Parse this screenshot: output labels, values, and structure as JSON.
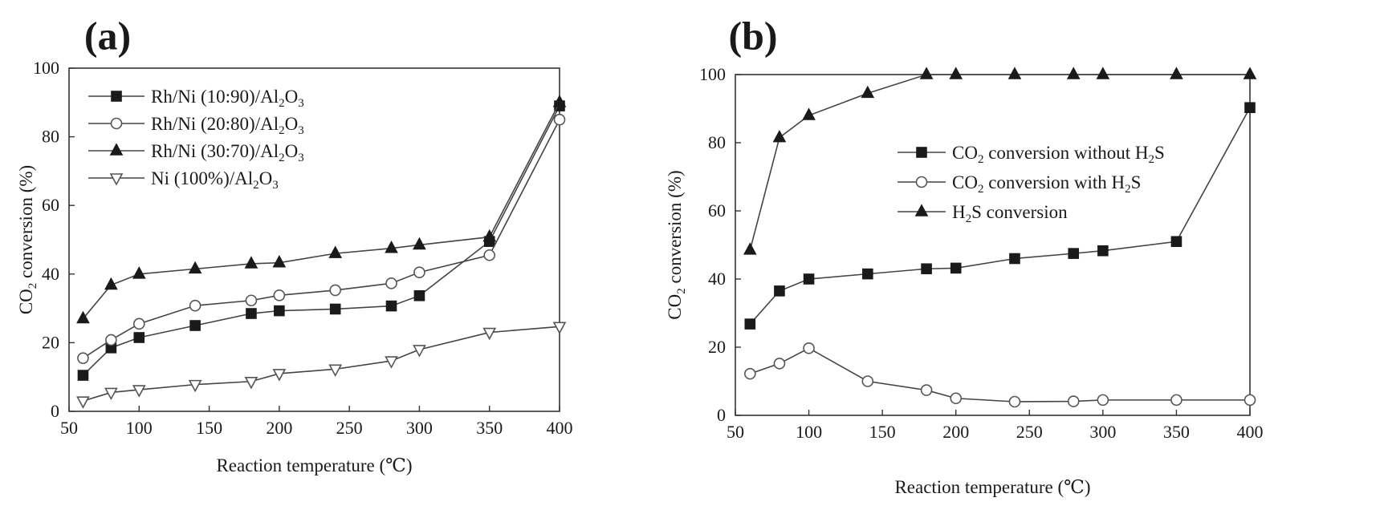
{
  "chart_data": [
    {
      "type": "line",
      "panel_label": "(a)",
      "xlabel": "Reaction temperature (℃)",
      "ylabel": "CO2 conversion (%)",
      "xlim": [
        50,
        400
      ],
      "ylim": [
        0,
        100
      ],
      "xticks": [
        50,
        100,
        150,
        200,
        250,
        300,
        350,
        400
      ],
      "yticks": [
        0,
        20,
        40,
        60,
        80,
        100
      ],
      "grid": false,
      "legend_position": "top-left",
      "series": [
        {
          "name": "Rh/Ni (10:90)/Al2O3",
          "marker": "square-filled",
          "x": [
            60,
            80,
            100,
            140,
            180,
            200,
            240,
            280,
            300,
            350,
            400
          ],
          "y": [
            10.5,
            18.5,
            21.5,
            25,
            28.5,
            29.3,
            29.8,
            30.7,
            33.7,
            49.5,
            89
          ]
        },
        {
          "name": "Rh/Ni (20:80)/Al2O3",
          "marker": "circle-open",
          "x": [
            60,
            80,
            100,
            140,
            180,
            200,
            240,
            280,
            300,
            350,
            400
          ],
          "y": [
            15.5,
            20.8,
            25.5,
            30.8,
            32.3,
            33.8,
            35.3,
            37.3,
            40.5,
            45.5,
            85
          ]
        },
        {
          "name": "Rh/Ni (30:70)/Al2O3",
          "marker": "triangle-up-filled",
          "x": [
            60,
            80,
            100,
            140,
            180,
            200,
            240,
            280,
            300,
            350,
            400
          ],
          "y": [
            27,
            36.8,
            40,
            41.5,
            43,
            43.3,
            46,
            47.5,
            48.5,
            50.8,
            90
          ]
        },
        {
          "name": "Ni (100%)/Al2O3",
          "marker": "triangle-down-open",
          "x": [
            60,
            80,
            100,
            140,
            180,
            200,
            240,
            280,
            300,
            350,
            400
          ],
          "y": [
            3,
            5.5,
            6.3,
            7.8,
            8.7,
            11,
            12.3,
            14.7,
            18,
            23,
            24.7
          ]
        }
      ]
    },
    {
      "type": "line",
      "panel_label": "(b)",
      "xlabel": "Reaction temperature (℃)",
      "ylabel": "CO2 conversion (%)",
      "xlim": [
        50,
        400
      ],
      "ylim": [
        0,
        100
      ],
      "xticks": [
        50,
        100,
        150,
        200,
        250,
        300,
        350,
        400
      ],
      "yticks": [
        0,
        20,
        40,
        60,
        80,
        100
      ],
      "grid": false,
      "legend_position": "center-right",
      "series": [
        {
          "name": "CO2 conversion without H2S",
          "marker": "square-filled",
          "x": [
            60,
            80,
            100,
            140,
            180,
            200,
            240,
            280,
            300,
            350,
            400
          ],
          "y": [
            26.8,
            36.5,
            40,
            41.5,
            43,
            43.2,
            46,
            47.5,
            48.3,
            51,
            90.3
          ]
        },
        {
          "name": "CO2 conversion with H2S",
          "marker": "circle-open",
          "x": [
            60,
            80,
            100,
            140,
            180,
            200,
            240,
            280,
            300,
            350,
            400
          ],
          "y": [
            12.2,
            15.2,
            19.7,
            10,
            7.4,
            5,
            4,
            4.1,
            4.5,
            4.5,
            4.5
          ]
        },
        {
          "name": "H2S conversion",
          "marker": "triangle-up-filled",
          "x": [
            60,
            80,
            100,
            140,
            180,
            200,
            240,
            280,
            300,
            350,
            400
          ],
          "y": [
            48.5,
            81.5,
            88,
            94.5,
            100,
            100,
            100,
            100,
            100,
            100,
            100
          ]
        }
      ]
    }
  ]
}
